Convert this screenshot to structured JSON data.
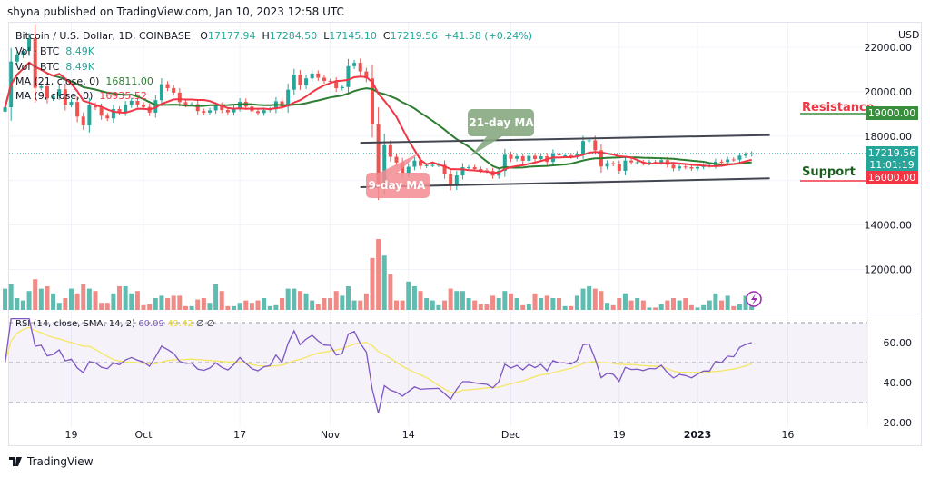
{
  "header": {
    "published": "shyna published on TradingView.com, Jan 10, 2023 12:58 UTC"
  },
  "legend": {
    "symbol": "Bitcoin / U.S. Dollar, 1D, COINBASE",
    "o_label": "O",
    "o": "17177.94",
    "h_label": "H",
    "h": "17284.50",
    "l_label": "L",
    "l": "17145.10",
    "c_label": "C",
    "c": "17219.56",
    "change": "+41.58 (+0.24%)",
    "vol1_label": "Vol · BTC",
    "vol1": "8.49K",
    "vol2_label": "Vol · BTC",
    "vol2": "8.49K",
    "ma21_label": "MA (21, close, 0)",
    "ma21": "16811.00",
    "ma9_label": "MA (9, close, 0)",
    "ma9": "16935.52",
    "rsi_label": "RSI (14, close, SMA, 14, 2)",
    "rsi": "60.09",
    "rsi_sma": "49.42",
    "rsi_extra1": "∅",
    "rsi_extra2": "∅"
  },
  "price_axis": {
    "currency": "USD",
    "ticks": [
      "22000.00",
      "20000.00",
      "18000.00",
      "14000.00",
      "12000.00"
    ],
    "current_price": "17219.56",
    "countdown": "11:01:19",
    "resistance_value": "19000.00",
    "support_value": "16000.00"
  },
  "rsi_axis": {
    "ticks": [
      "60.00",
      "40.00",
      "20.00"
    ]
  },
  "time_axis": {
    "ticks": [
      {
        "label": "19",
        "date": "2022-09-19"
      },
      {
        "label": "Oct",
        "date": "2022-10-01"
      },
      {
        "label": "17",
        "date": "2022-10-17"
      },
      {
        "label": "Nov",
        "date": "2022-11-01"
      },
      {
        "label": "14",
        "date": "2022-11-14"
      },
      {
        "label": "Dec",
        "date": "2022-12-01"
      },
      {
        "label": "19",
        "date": "2022-12-19"
      },
      {
        "label": "2023",
        "date": "2023-01-01"
      },
      {
        "label": "16",
        "date": "2023-01-16"
      }
    ]
  },
  "annotations": {
    "resistance": "Resistance",
    "support": "Support",
    "ma21_callout": "21-day MA",
    "ma9_callout": "9-day MA",
    "channel_upper": [
      [
        "2022-11-06",
        17700
      ],
      [
        "2023-01-13",
        18050
      ]
    ],
    "channel_lower": [
      [
        "2022-11-06",
        15700
      ],
      [
        "2023-01-13",
        16100
      ]
    ]
  },
  "colors": {
    "up": "#26a69a",
    "down": "#ef5350",
    "ma21": "#2e7d32",
    "ma9": "#f23645",
    "rsi": "#7e57c2",
    "rsi_sma": "#f5e663",
    "resistance_box": "#388e3c",
    "support_box": "#f23645"
  },
  "footer": {
    "brand": "TradingView"
  },
  "chart_data": {
    "type": "candlestick",
    "symbol": "BTC/USD",
    "ylim": [
      12000,
      22500
    ],
    "columns": [
      "date",
      "close",
      "volume_k"
    ],
    "candles": [
      [
        "2022-09-08",
        19300,
        45
      ],
      [
        "2022-09-09",
        21360,
        55
      ],
      [
        "2022-09-10",
        21650,
        25
      ],
      [
        "2022-09-11",
        21830,
        20
      ],
      [
        "2022-09-12",
        22400,
        40
      ],
      [
        "2022-09-13",
        20170,
        65
      ],
      [
        "2022-09-14",
        20240,
        45
      ],
      [
        "2022-09-15",
        19700,
        50
      ],
      [
        "2022-09-16",
        19800,
        35
      ],
      [
        "2022-09-17",
        20110,
        15
      ],
      [
        "2022-09-18",
        19420,
        25
      ],
      [
        "2022-09-19",
        19540,
        45
      ],
      [
        "2022-09-20",
        18880,
        35
      ],
      [
        "2022-09-21",
        18480,
        55
      ],
      [
        "2022-09-22",
        19400,
        45
      ],
      [
        "2022-09-23",
        19290,
        40
      ],
      [
        "2022-09-24",
        18920,
        15
      ],
      [
        "2022-09-25",
        18800,
        15
      ],
      [
        "2022-09-26",
        19220,
        35
      ],
      [
        "2022-09-27",
        19080,
        50
      ],
      [
        "2022-09-28",
        19410,
        50
      ],
      [
        "2022-09-29",
        19590,
        35
      ],
      [
        "2022-09-30",
        19420,
        40
      ],
      [
        "2022-10-01",
        19310,
        10
      ],
      [
        "2022-10-02",
        19060,
        12
      ],
      [
        "2022-10-03",
        19620,
        25
      ],
      [
        "2022-10-04",
        20340,
        30
      ],
      [
        "2022-10-05",
        20160,
        25
      ],
      [
        "2022-10-06",
        19960,
        30
      ],
      [
        "2022-10-07",
        19530,
        30
      ],
      [
        "2022-10-08",
        19420,
        8
      ],
      [
        "2022-10-09",
        19440,
        8
      ],
      [
        "2022-10-10",
        19130,
        22
      ],
      [
        "2022-10-11",
        19060,
        25
      ],
      [
        "2022-10-12",
        19160,
        15
      ],
      [
        "2022-10-13",
        19380,
        55
      ],
      [
        "2022-10-14",
        19180,
        40
      ],
      [
        "2022-10-15",
        19070,
        8
      ],
      [
        "2022-10-16",
        19270,
        8
      ],
      [
        "2022-10-17",
        19550,
        15
      ],
      [
        "2022-10-18",
        19330,
        20
      ],
      [
        "2022-10-19",
        19120,
        15
      ],
      [
        "2022-10-20",
        19040,
        20
      ],
      [
        "2022-10-21",
        19170,
        25
      ],
      [
        "2022-10-22",
        19210,
        8
      ],
      [
        "2022-10-23",
        19570,
        10
      ],
      [
        "2022-10-24",
        19330,
        25
      ],
      [
        "2022-10-25",
        20090,
        45
      ],
      [
        "2022-10-26",
        20770,
        45
      ],
      [
        "2022-10-27",
        20290,
        40
      ],
      [
        "2022-10-28",
        20600,
        35
      ],
      [
        "2022-10-29",
        20820,
        20
      ],
      [
        "2022-10-30",
        20630,
        12
      ],
      [
        "2022-10-31",
        20490,
        25
      ],
      [
        "2022-11-01",
        20480,
        25
      ],
      [
        "2022-11-02",
        20160,
        40
      ],
      [
        "2022-11-03",
        20210,
        30
      ],
      [
        "2022-11-04",
        21150,
        50
      ],
      [
        "2022-11-05",
        21300,
        20
      ],
      [
        "2022-11-06",
        20910,
        20
      ],
      [
        "2022-11-07",
        20600,
        35
      ],
      [
        "2022-11-08",
        18540,
        110
      ],
      [
        "2022-11-09",
        15880,
        150
      ],
      [
        "2022-11-10",
        17590,
        115
      ],
      [
        "2022-11-11",
        17070,
        75
      ],
      [
        "2022-11-12",
        16810,
        20
      ],
      [
        "2022-11-13",
        16330,
        20
      ],
      [
        "2022-11-14",
        16620,
        60
      ],
      [
        "2022-11-15",
        16900,
        50
      ],
      [
        "2022-11-16",
        16660,
        40
      ],
      [
        "2022-11-17",
        16690,
        25
      ],
      [
        "2022-11-18",
        16700,
        20
      ],
      [
        "2022-11-19",
        16710,
        10
      ],
      [
        "2022-11-20",
        16280,
        20
      ],
      [
        "2022-11-21",
        15780,
        45
      ],
      [
        "2022-11-22",
        16230,
        40
      ],
      [
        "2022-11-23",
        16600,
        40
      ],
      [
        "2022-11-24",
        16600,
        25
      ],
      [
        "2022-11-25",
        16520,
        20
      ],
      [
        "2022-11-26",
        16460,
        12
      ],
      [
        "2022-11-27",
        16430,
        12
      ],
      [
        "2022-11-28",
        16220,
        30
      ],
      [
        "2022-11-29",
        16440,
        25
      ],
      [
        "2022-11-30",
        17160,
        40
      ],
      [
        "2022-12-01",
        16980,
        35
      ],
      [
        "2022-12-02",
        17090,
        25
      ],
      [
        "2022-12-03",
        16890,
        10
      ],
      [
        "2022-12-04",
        17110,
        12
      ],
      [
        "2022-12-05",
        16970,
        35
      ],
      [
        "2022-12-06",
        17090,
        25
      ],
      [
        "2022-12-07",
        16840,
        30
      ],
      [
        "2022-12-08",
        17220,
        25
      ],
      [
        "2022-12-09",
        17130,
        25
      ],
      [
        "2022-12-10",
        17130,
        8
      ],
      [
        "2022-12-11",
        17090,
        8
      ],
      [
        "2022-12-12",
        17210,
        30
      ],
      [
        "2022-12-13",
        17780,
        45
      ],
      [
        "2022-12-14",
        17810,
        50
      ],
      [
        "2022-12-15",
        17360,
        45
      ],
      [
        "2022-12-16",
        16630,
        40
      ],
      [
        "2022-12-17",
        16780,
        15
      ],
      [
        "2022-12-18",
        16740,
        10
      ],
      [
        "2022-12-19",
        16440,
        25
      ],
      [
        "2022-12-20",
        16900,
        35
      ],
      [
        "2022-12-21",
        16820,
        20
      ],
      [
        "2022-12-22",
        16830,
        25
      ],
      [
        "2022-12-23",
        16780,
        20
      ],
      [
        "2022-12-24",
        16840,
        5
      ],
      [
        "2022-12-25",
        16830,
        5
      ],
      [
        "2022-12-26",
        16920,
        12
      ],
      [
        "2022-12-27",
        16710,
        20
      ],
      [
        "2022-12-28",
        16550,
        25
      ],
      [
        "2022-12-29",
        16630,
        20
      ],
      [
        "2022-12-30",
        16600,
        25
      ],
      [
        "2022-12-31",
        16540,
        10
      ],
      [
        "2023-01-01",
        16610,
        5
      ],
      [
        "2023-01-02",
        16670,
        10
      ],
      [
        "2023-01-03",
        16670,
        20
      ],
      [
        "2023-01-04",
        16850,
        35
      ],
      [
        "2023-01-05",
        16830,
        20
      ],
      [
        "2023-01-06",
        16950,
        30
      ],
      [
        "2023-01-07",
        16940,
        8
      ],
      [
        "2023-01-08",
        17120,
        12
      ],
      [
        "2023-01-09",
        17180,
        30
      ],
      [
        "2023-01-10",
        17219.56,
        8.49
      ]
    ],
    "last_open": 17177.94,
    "indicators": [
      "MA 21",
      "MA 9",
      "Volume",
      "RSI 14 with SMA 14"
    ],
    "rsi_levels": [
      30,
      50,
      70
    ],
    "rsi_ylim": [
      18,
      72
    ],
    "grid": true
  }
}
